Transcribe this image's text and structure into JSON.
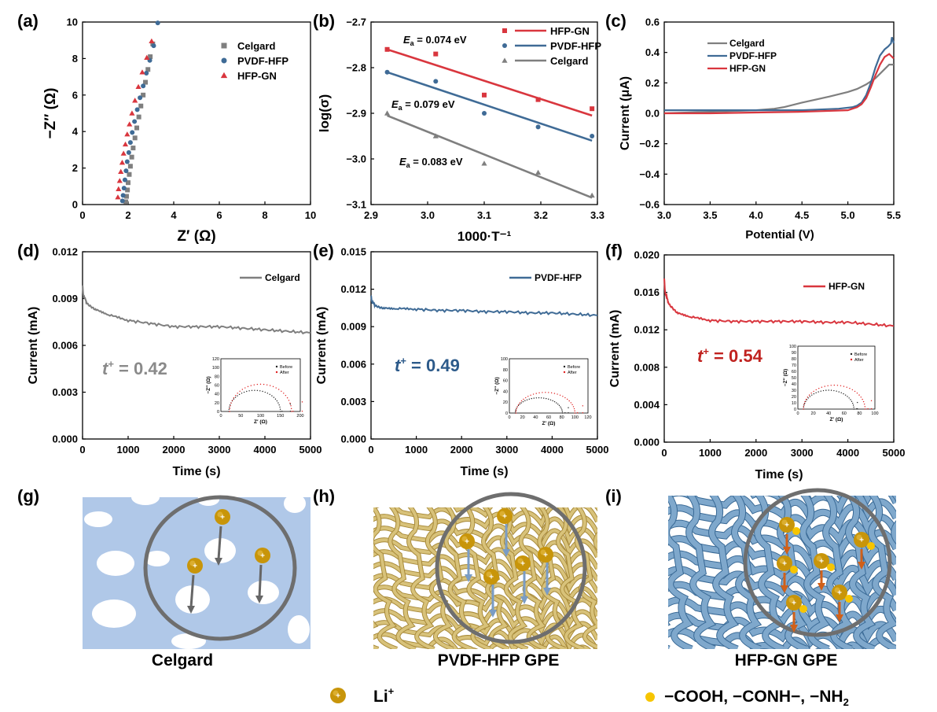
{
  "colors": {
    "celgard": "#7f7f7f",
    "pvdf": "#3f6b96",
    "hfp": "#d9363e",
    "li": "#c8950a",
    "group": "#f7c500",
    "celgard_bg": "#b0c8e8",
    "pvdf_fiber": "#d8c27a",
    "hfp_fiber": "#7fa8cc",
    "t_gray": "#8a8a8a",
    "t_blue": "#2c5a8a",
    "t_red": "#c0221f"
  },
  "chart_data": [
    {
      "id": "a",
      "panel_label": "(a)",
      "type": "scatter",
      "xlabel": "Z′ (Ω)",
      "ylabel": "−Z″ (Ω)",
      "xlim": [
        0,
        10
      ],
      "ylim": [
        0,
        10
      ],
      "xticks": [
        "0",
        "2",
        "4",
        "6",
        "8",
        "10"
      ],
      "yticks": [
        "0",
        "2",
        "4",
        "6",
        "8",
        "10"
      ],
      "legend": "top-right",
      "series": [
        {
          "name": "Celgard",
          "marker": "square",
          "color": "celgard",
          "x": [
            1.9,
            1.93,
            1.97,
            2.0,
            2.05,
            2.1,
            2.16,
            2.22,
            2.3,
            2.38,
            2.47,
            2.56,
            2.66,
            2.76,
            2.87,
            2.97,
            3.08
          ],
          "y": [
            0.15,
            0.45,
            0.8,
            1.2,
            1.65,
            2.1,
            2.6,
            3.1,
            3.65,
            4.2,
            4.8,
            5.4,
            6.0,
            6.7,
            7.4,
            8.1,
            8.8
          ]
        },
        {
          "name": "PVDF-HFP",
          "marker": "circle",
          "color": "pvdf",
          "x": [
            1.75,
            1.78,
            1.82,
            1.86,
            1.91,
            1.96,
            2.03,
            2.1,
            2.18,
            2.28,
            2.4,
            2.52,
            2.66,
            2.8,
            2.95,
            3.12,
            3.3
          ],
          "y": [
            0.2,
            0.5,
            0.9,
            1.35,
            1.85,
            2.35,
            2.85,
            3.4,
            3.95,
            4.55,
            5.2,
            5.85,
            6.5,
            7.2,
            7.9,
            8.7,
            9.95
          ]
        },
        {
          "name": "HFP-GN",
          "marker": "triangle",
          "color": "hfp",
          "x": [
            1.55,
            1.58,
            1.63,
            1.68,
            1.74,
            1.8,
            1.88,
            1.96,
            2.06,
            2.17,
            2.3,
            2.45,
            2.62,
            2.82,
            3.03
          ],
          "y": [
            0.4,
            0.85,
            1.3,
            1.8,
            2.3,
            2.8,
            3.3,
            3.85,
            4.4,
            5.0,
            5.7,
            6.45,
            7.25,
            8.05,
            8.95
          ]
        }
      ]
    },
    {
      "id": "b",
      "panel_label": "(b)",
      "type": "scatter",
      "xlabel": "1000·T⁻¹",
      "ylabel": "log(σ)",
      "xlim": [
        2.88,
        3.3
      ],
      "ylim": [
        -3.1,
        -2.7
      ],
      "xticks": [
        "2.9",
        "3.0",
        "3.1",
        "3.2",
        "3.3"
      ],
      "yticks": [
        "−2.7",
        "−2.8",
        "−2.9",
        "−3.0",
        "−3.1"
      ],
      "legend": "top-right",
      "series": [
        {
          "name": "HFP-GN",
          "marker": "square",
          "color": "hfp",
          "x": [
            2.91,
            3.0,
            3.09,
            3.19,
            3.29
          ],
          "y": [
            -2.76,
            -2.77,
            -2.86,
            -2.87,
            -2.89
          ],
          "fit": [
            [
              2.91,
              -2.76
            ],
            [
              3.29,
              -2.905
            ]
          ]
        },
        {
          "name": "PVDF-HFP",
          "marker": "circle",
          "color": "pvdf",
          "x": [
            2.91,
            3.0,
            3.09,
            3.19,
            3.29
          ],
          "y": [
            -2.81,
            -2.83,
            -2.9,
            -2.93,
            -2.95
          ],
          "fit": [
            [
              2.91,
              -2.81
            ],
            [
              3.29,
              -2.96
            ]
          ]
        },
        {
          "name": "Celgard",
          "marker": "triangle",
          "color": "celgard",
          "x": [
            2.91,
            3.0,
            3.09,
            3.19,
            3.29
          ],
          "y": [
            -2.9,
            -2.95,
            -3.01,
            -3.03,
            -3.08
          ],
          "fit": [
            [
              2.91,
              -2.905
            ],
            [
              3.29,
              -3.085
            ]
          ]
        }
      ],
      "annotations": [
        {
          "sym": "E",
          "sub": "a",
          "text": " = 0.074 eV"
        },
        {
          "sym": "E",
          "sub": "a",
          "text": " = 0.079 eV"
        },
        {
          "sym": "E",
          "sub": "a",
          "text": " = 0.083 eV"
        }
      ]
    },
    {
      "id": "c",
      "panel_label": "(c)",
      "type": "line",
      "xlabel": "Potential (V)",
      "ylabel": "Current (μA)",
      "xlim": [
        3.0,
        5.5
      ],
      "ylim": [
        -0.6,
        0.6
      ],
      "xticks": [
        "3.0",
        "3.5",
        "4.0",
        "4.5",
        "5.0",
        "5.5"
      ],
      "yticks": [
        "−0.6",
        "−0.4",
        "−0.2",
        "0.0",
        "0.2",
        "0.4",
        "0.6"
      ],
      "legend": "top-left",
      "series": [
        {
          "name": "Celgard",
          "color": "celgard",
          "x": [
            3.0,
            3.5,
            4.0,
            4.2,
            4.3,
            4.5,
            4.8,
            5.0,
            5.1,
            5.2,
            5.3,
            5.4,
            5.45,
            5.5
          ],
          "y": [
            0.0,
            0.01,
            0.02,
            0.03,
            0.04,
            0.07,
            0.11,
            0.14,
            0.16,
            0.19,
            0.23,
            0.29,
            0.32,
            0.32
          ]
        },
        {
          "name": "PVDF-HFP",
          "color": "pvdf",
          "x": [
            3.0,
            3.5,
            4.0,
            4.5,
            4.9,
            5.05,
            5.1,
            5.15,
            5.2,
            5.25,
            5.3,
            5.35,
            5.4,
            5.44,
            5.47,
            5.48,
            5.5
          ],
          "y": [
            0.02,
            0.02,
            0.02,
            0.02,
            0.03,
            0.04,
            0.05,
            0.07,
            0.12,
            0.2,
            0.3,
            0.38,
            0.42,
            0.44,
            0.46,
            0.5,
            0.46
          ]
        },
        {
          "name": "HFP-GN",
          "color": "hfp",
          "x": [
            3.0,
            3.5,
            4.0,
            4.5,
            5.0,
            5.1,
            5.15,
            5.2,
            5.25,
            5.3,
            5.35,
            5.4,
            5.45,
            5.5
          ],
          "y": [
            0.0,
            0.0,
            0.005,
            0.01,
            0.02,
            0.04,
            0.06,
            0.1,
            0.17,
            0.25,
            0.32,
            0.37,
            0.39,
            0.36
          ]
        }
      ]
    },
    {
      "id": "d",
      "panel_label": "(d)",
      "type": "line",
      "xlabel": "Time (s)",
      "ylabel": "Current (mA)",
      "xlim": [
        0,
        5000
      ],
      "ylim": [
        0,
        0.012
      ],
      "xticks": [
        "0",
        "1000",
        "2000",
        "3000",
        "4000",
        "5000"
      ],
      "yticks": [
        "0.000",
        "0.003",
        "0.006",
        "0.009",
        "0.012"
      ],
      "legend": "top-right",
      "series": [
        {
          "name": "Celgard",
          "color": "celgard",
          "x": [
            0,
            20,
            100,
            300,
            600,
            1000,
            1500,
            2000,
            2500,
            3000,
            3500,
            4000,
            4500,
            5000
          ],
          "y": [
            0.0098,
            0.0092,
            0.0087,
            0.0083,
            0.0079,
            0.0076,
            0.0074,
            0.0072,
            0.0072,
            0.0072,
            0.0071,
            0.007,
            0.0069,
            0.0068
          ]
        }
      ],
      "transference": {
        "sym": "t",
        "sup": "+",
        "text": " = 0.42",
        "color": "t_gray"
      },
      "inset": {
        "xlabel": "Z′ (Ω)",
        "ylabel": "−Z″ (Ω)",
        "xlim": [
          0,
          200
        ],
        "ylim": [
          0,
          120
        ],
        "xticks": [
          "0",
          "50",
          "100",
          "150",
          "200"
        ],
        "yticks": [
          "0",
          "20",
          "40",
          "60",
          "80",
          "100",
          "120"
        ],
        "legend": [
          "Before",
          "After"
        ],
        "r_before": 65,
        "c_before": 85,
        "h_before": 48,
        "r_after": 78,
        "c_after": 100,
        "h_after": 62,
        "tail_before": 175,
        "tail_after": 205
      }
    },
    {
      "id": "e",
      "panel_label": "(e)",
      "type": "line",
      "xlabel": "Time (s)",
      "ylabel": "Current (mA)",
      "xlim": [
        0,
        5000
      ],
      "ylim": [
        0,
        0.015
      ],
      "xticks": [
        "0",
        "1000",
        "2000",
        "3000",
        "4000",
        "5000"
      ],
      "yticks": [
        "0.000",
        "0.003",
        "0.006",
        "0.009",
        "0.012",
        "0.015"
      ],
      "legend": "top-right",
      "series": [
        {
          "name": "PVDF-HFP",
          "color": "pvdf",
          "x": [
            0,
            20,
            100,
            300,
            600,
            1000,
            1500,
            2000,
            2500,
            3000,
            3500,
            4000,
            4500,
            5000
          ],
          "y": [
            0.0114,
            0.011,
            0.0107,
            0.0105,
            0.0104,
            0.0104,
            0.0103,
            0.0103,
            0.0102,
            0.0102,
            0.0101,
            0.0101,
            0.01,
            0.0099
          ]
        }
      ],
      "transference": {
        "sym": "t",
        "sup": "+",
        "text": " = 0.49",
        "color": "t_blue"
      },
      "inset": {
        "xlabel": "Z′ (Ω)",
        "ylabel": "−Z″ (Ω)",
        "xlim": [
          0,
          120
        ],
        "ylim": [
          0,
          100
        ],
        "xticks": [
          "0",
          "20",
          "40",
          "60",
          "80",
          "100",
          "120"
        ],
        "yticks": [
          "0",
          "20",
          "40",
          "60",
          "80",
          "100"
        ],
        "legend": [
          "Before",
          "After"
        ],
        "r_before": 36,
        "c_before": 45,
        "h_before": 28,
        "r_after": 45,
        "c_after": 55,
        "h_after": 38,
        "tail_before": 90,
        "tail_after": 112
      }
    },
    {
      "id": "f",
      "panel_label": "(f)",
      "type": "line",
      "xlabel": "Time (s)",
      "ylabel": "Current (mA)",
      "xlim": [
        0,
        5000
      ],
      "ylim": [
        0,
        0.02
      ],
      "xticks": [
        "0",
        "1000",
        "2000",
        "3000",
        "4000",
        "5000"
      ],
      "yticks": [
        "0.000",
        "0.004",
        "0.008",
        "0.012",
        "0.016",
        "0.020"
      ],
      "legend": "top-right",
      "series": [
        {
          "name": "HFP-GN",
          "color": "hfp",
          "x": [
            0,
            20,
            100,
            300,
            600,
            1000,
            1500,
            2000,
            2500,
            3000,
            3500,
            4000,
            4500,
            5000
          ],
          "y": [
            0.0174,
            0.016,
            0.0148,
            0.0138,
            0.0133,
            0.013,
            0.0129,
            0.0129,
            0.0129,
            0.0129,
            0.0128,
            0.0128,
            0.0126,
            0.0124
          ]
        }
      ],
      "transference": {
        "sym": "t",
        "sup": "+",
        "text": " = 0.54",
        "color": "t_red"
      },
      "inset": {
        "xlabel": "Z′ (Ω)",
        "ylabel": "−Z″ (Ω)",
        "xlim": [
          0,
          110
        ],
        "ylim": [
          0,
          100
        ],
        "xticks": [
          "0",
          "20",
          "40",
          "60",
          "80",
          "100"
        ],
        "yticks": [
          "0",
          "10",
          "20",
          "30",
          "40",
          "50",
          "60",
          "70",
          "80",
          "90",
          "100"
        ],
        "legend": [
          "Before",
          "After"
        ],
        "r_before": 36,
        "c_before": 44,
        "h_before": 30,
        "r_after": 44,
        "c_after": 52,
        "h_after": 38,
        "tail_before": 85,
        "tail_after": 105
      }
    }
  ],
  "schematics": [
    {
      "id": "g",
      "panel_label": "(g)",
      "caption": "Celgard"
    },
    {
      "id": "h",
      "panel_label": "(h)",
      "caption": "PVDF-HFP GPE"
    },
    {
      "id": "i",
      "panel_label": "(i)",
      "caption": "HFP-GN GPE"
    }
  ],
  "legend_bottom": {
    "li_label": "Li",
    "li_sup": "+",
    "ion_plus": "+",
    "group_label": "−COOH, −CONH−, −NH",
    "group_sub": "2"
  }
}
